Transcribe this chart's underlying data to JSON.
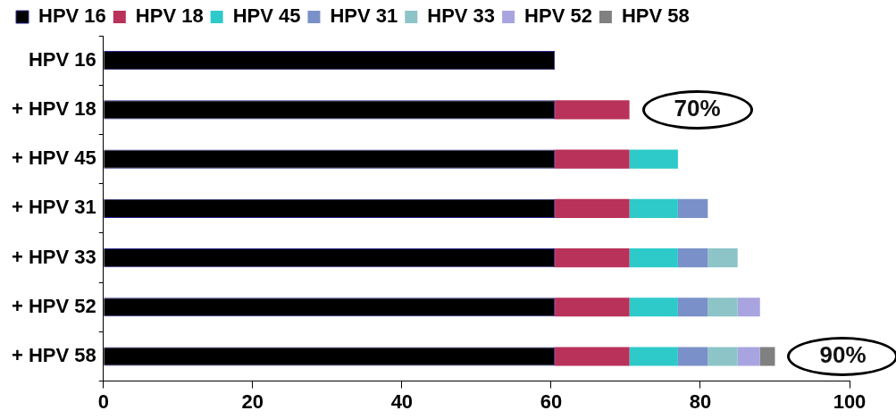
{
  "chart_data": {
    "type": "bar",
    "orientation": "horizontal",
    "stacked": true,
    "categories": [
      "HPV 16",
      "+ HPV 18",
      "+ HPV 45",
      "+ HPV 31",
      "+ HPV 33",
      "+ HPV 52",
      "+ HPV 58"
    ],
    "series": [
      {
        "name": "HPV 16",
        "color": "#000000",
        "values": [
          60.5,
          60.5,
          60.5,
          60.5,
          60.5,
          60.5,
          60.5
        ]
      },
      {
        "name": "HPV 18",
        "color": "#b8325a",
        "values": [
          null,
          10,
          10,
          10,
          10,
          10,
          10
        ]
      },
      {
        "name": "HPV 45",
        "color": "#2ecaca",
        "values": [
          null,
          null,
          6.5,
          6.5,
          6.5,
          6.5,
          6.5
        ]
      },
      {
        "name": "HPV 31",
        "color": "#7a90c8",
        "values": [
          null,
          null,
          null,
          4,
          4,
          4,
          4
        ]
      },
      {
        "name": "HPV 33",
        "color": "#8cc4c8",
        "values": [
          null,
          null,
          null,
          null,
          4,
          4,
          4
        ]
      },
      {
        "name": "HPV 52",
        "color": "#a8a4e0",
        "values": [
          null,
          null,
          null,
          null,
          null,
          3,
          3
        ]
      },
      {
        "name": "HPV 58",
        "color": "#808080",
        "values": [
          null,
          null,
          null,
          null,
          null,
          null,
          2
        ]
      }
    ],
    "xlim": [
      0,
      100
    ],
    "xticks": [
      0,
      20,
      40,
      60,
      80,
      100
    ],
    "grid": false,
    "legend": "top left",
    "annotations": [
      {
        "text": "70%",
        "x": 70.5,
        "y": "+ HPV 18"
      },
      {
        "text": "90%",
        "x": 90,
        "y": "+ HPV 58"
      }
    ]
  }
}
